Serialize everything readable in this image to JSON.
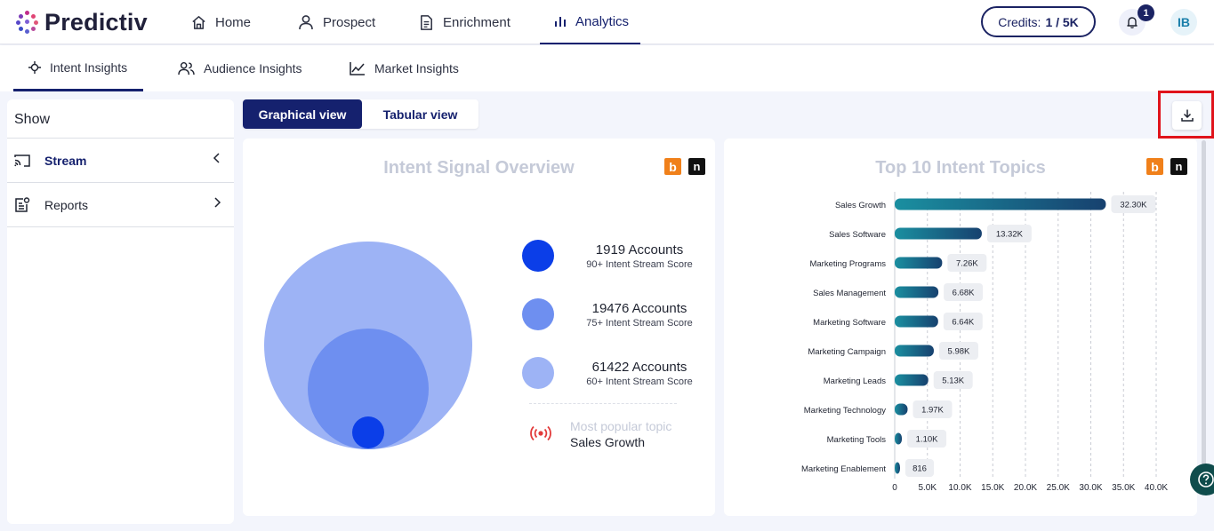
{
  "brand": {
    "name": "Predictiv",
    "accent": "#15216e"
  },
  "topnav": {
    "items": [
      {
        "label": "Home",
        "icon": "home-icon"
      },
      {
        "label": "Prospect",
        "icon": "user-icon"
      },
      {
        "label": "Enrichment",
        "icon": "document-icon"
      },
      {
        "label": "Analytics",
        "icon": "bar-chart-icon",
        "active": true
      }
    ],
    "credits_label": "Credits:",
    "credits_value": "1 / 5K",
    "notifications_count": "1",
    "avatar_initials": "IB"
  },
  "subtabs": [
    {
      "label": "Intent Insights",
      "icon": "crosshair-icon",
      "active": true
    },
    {
      "label": "Audience Insights",
      "icon": "users-icon"
    },
    {
      "label": "Market Insights",
      "icon": "line-chart-icon"
    }
  ],
  "sidebar": {
    "title": "Show",
    "items": [
      {
        "label": "Stream",
        "icon": "cast-icon",
        "chevron": "chevron-left-icon"
      },
      {
        "label": "Reports",
        "icon": "report-icon",
        "chevron": "chevron-right-icon"
      }
    ]
  },
  "view_toggle": {
    "graphical": "Graphical view",
    "tabular": "Tabular view",
    "selected": "graphical"
  },
  "overview": {
    "title": "Intent Signal Overview",
    "legend": [
      {
        "accounts": "1919 Accounts",
        "score": "90+ Intent Stream Score",
        "color": "#0b3ee8"
      },
      {
        "accounts": "19476 Accounts",
        "score": "75+ Intent Stream Score",
        "color": "#6e8ff0"
      },
      {
        "accounts": "61422 Accounts",
        "score": "60+ Intent Stream Score",
        "color": "#9db3f5"
      }
    ],
    "popular_label": "Most popular topic",
    "popular_value": "Sales Growth"
  },
  "topics": {
    "title": "Top 10 Intent Topics"
  },
  "chart_data": {
    "type": "bar",
    "title": "Top 10 Intent Topics",
    "orientation": "horizontal",
    "categories": [
      "Sales Growth",
      "Sales Software",
      "Marketing Programs",
      "Sales Management",
      "Marketing Software",
      "Marketing Campaign",
      "Marketing Leads",
      "Marketing Technology",
      "Marketing Tools",
      "Marketing Enablement"
    ],
    "values": [
      32300,
      13320,
      7260,
      6680,
      6640,
      5980,
      5130,
      1970,
      1100,
      816
    ],
    "value_labels": [
      "32.30K",
      "13.32K",
      "7.26K",
      "6.68K",
      "6.64K",
      "5.98K",
      "5.13K",
      "1.97K",
      "1.10K",
      "816"
    ],
    "xlim": [
      0,
      40000
    ],
    "x_ticks": [
      "0",
      "5.0K",
      "10.0K",
      "15.0K",
      "20.0K",
      "25.0K",
      "30.0K",
      "35.0K",
      "40.0K"
    ],
    "grid": true,
    "xlabel": "",
    "ylabel": ""
  }
}
